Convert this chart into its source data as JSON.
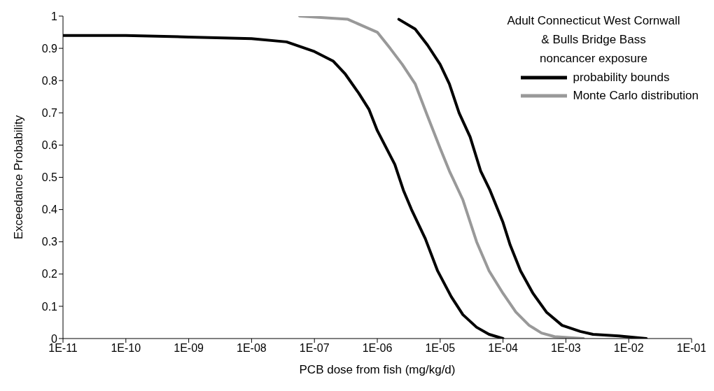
{
  "chart_data": {
    "type": "line",
    "title": "Adult Connecticut West Cornwall\n& Bulls Bridge Bass\nnoncancer exposure",
    "xlabel": "PCB dose from fish (mg/kg/d)",
    "ylabel": "Exceedance Probability",
    "log": "x",
    "xlim": [
      1e-11,
      0.1
    ],
    "xticks": [
      {
        "value": 1e-11,
        "label": "1E-11"
      },
      {
        "value": 1e-10,
        "label": "1E-10"
      },
      {
        "value": 1e-09,
        "label": "1E-09"
      },
      {
        "value": 1e-08,
        "label": "1E-08"
      },
      {
        "value": 1e-07,
        "label": "1E-07"
      },
      {
        "value": 1e-06,
        "label": "1E-06"
      },
      {
        "value": 1e-05,
        "label": "1E-05"
      },
      {
        "value": 0.0001,
        "label": "1E-04"
      },
      {
        "value": 0.001,
        "label": "1E-03"
      },
      {
        "value": 0.01,
        "label": "1E-02"
      },
      {
        "value": 0.1,
        "label": "1E-01"
      }
    ],
    "ylim": [
      0,
      1
    ],
    "yticks": [
      0,
      0.1,
      0.2,
      0.3,
      0.4,
      0.5,
      0.6,
      0.7,
      0.8,
      0.9,
      1
    ],
    "legend": "top right",
    "series": [
      {
        "name": "probability bounds",
        "color": "#000000",
        "x": [
          1e-11,
          1e-10,
          1e-09,
          1e-08,
          3.6e-08,
          1e-07,
          2e-07,
          3.1e-07,
          5.1e-07,
          7.4e-07,
          1e-06,
          1.9e-06,
          2.6e-06,
          3.5e-06,
          5.8e-06,
          9.1e-06,
          1.5e-05,
          2.3e-05,
          3.8e-05,
          6e-05,
          0.0001
        ],
        "values": [
          0.94,
          0.94,
          0.935,
          0.93,
          0.92,
          0.89,
          0.86,
          0.82,
          0.76,
          0.71,
          0.645,
          0.54,
          0.46,
          0.4,
          0.31,
          0.21,
          0.13,
          0.074,
          0.035,
          0.013,
          0
        ]
      },
      {
        "color": "#000000",
        "x": [
          2.2e-06,
          4e-06,
          6.3e-06,
          1e-05,
          1.4e-05,
          2e-05,
          3e-05,
          4.4e-05,
          6.2e-05,
          0.0001,
          0.00013,
          0.00019,
          0.0003,
          0.00049,
          0.00087,
          0.0017,
          0.0027,
          0.0069,
          0.019
        ],
        "values": [
          0.99,
          0.96,
          0.91,
          0.85,
          0.79,
          0.7,
          0.625,
          0.52,
          0.46,
          0.36,
          0.29,
          0.21,
          0.14,
          0.082,
          0.041,
          0.022,
          0.013,
          0.008,
          0
        ]
      },
      {
        "name": "Monte Carlo distribution",
        "color": "#999999",
        "x": [
          5.8e-08,
          3.4e-07,
          1e-06,
          1.6e-06,
          2.5e-06,
          4e-06,
          6.3e-06,
          1e-05,
          1.4e-05,
          2.3e-05,
          3.8e-05,
          6e-05,
          0.0001,
          0.00016,
          0.00026,
          0.00041,
          0.00066,
          0.0019
        ],
        "values": [
          1,
          0.99,
          0.95,
          0.9,
          0.85,
          0.79,
          0.69,
          0.59,
          0.52,
          0.43,
          0.3,
          0.21,
          0.14,
          0.082,
          0.041,
          0.017,
          0.006,
          0
        ]
      }
    ]
  }
}
